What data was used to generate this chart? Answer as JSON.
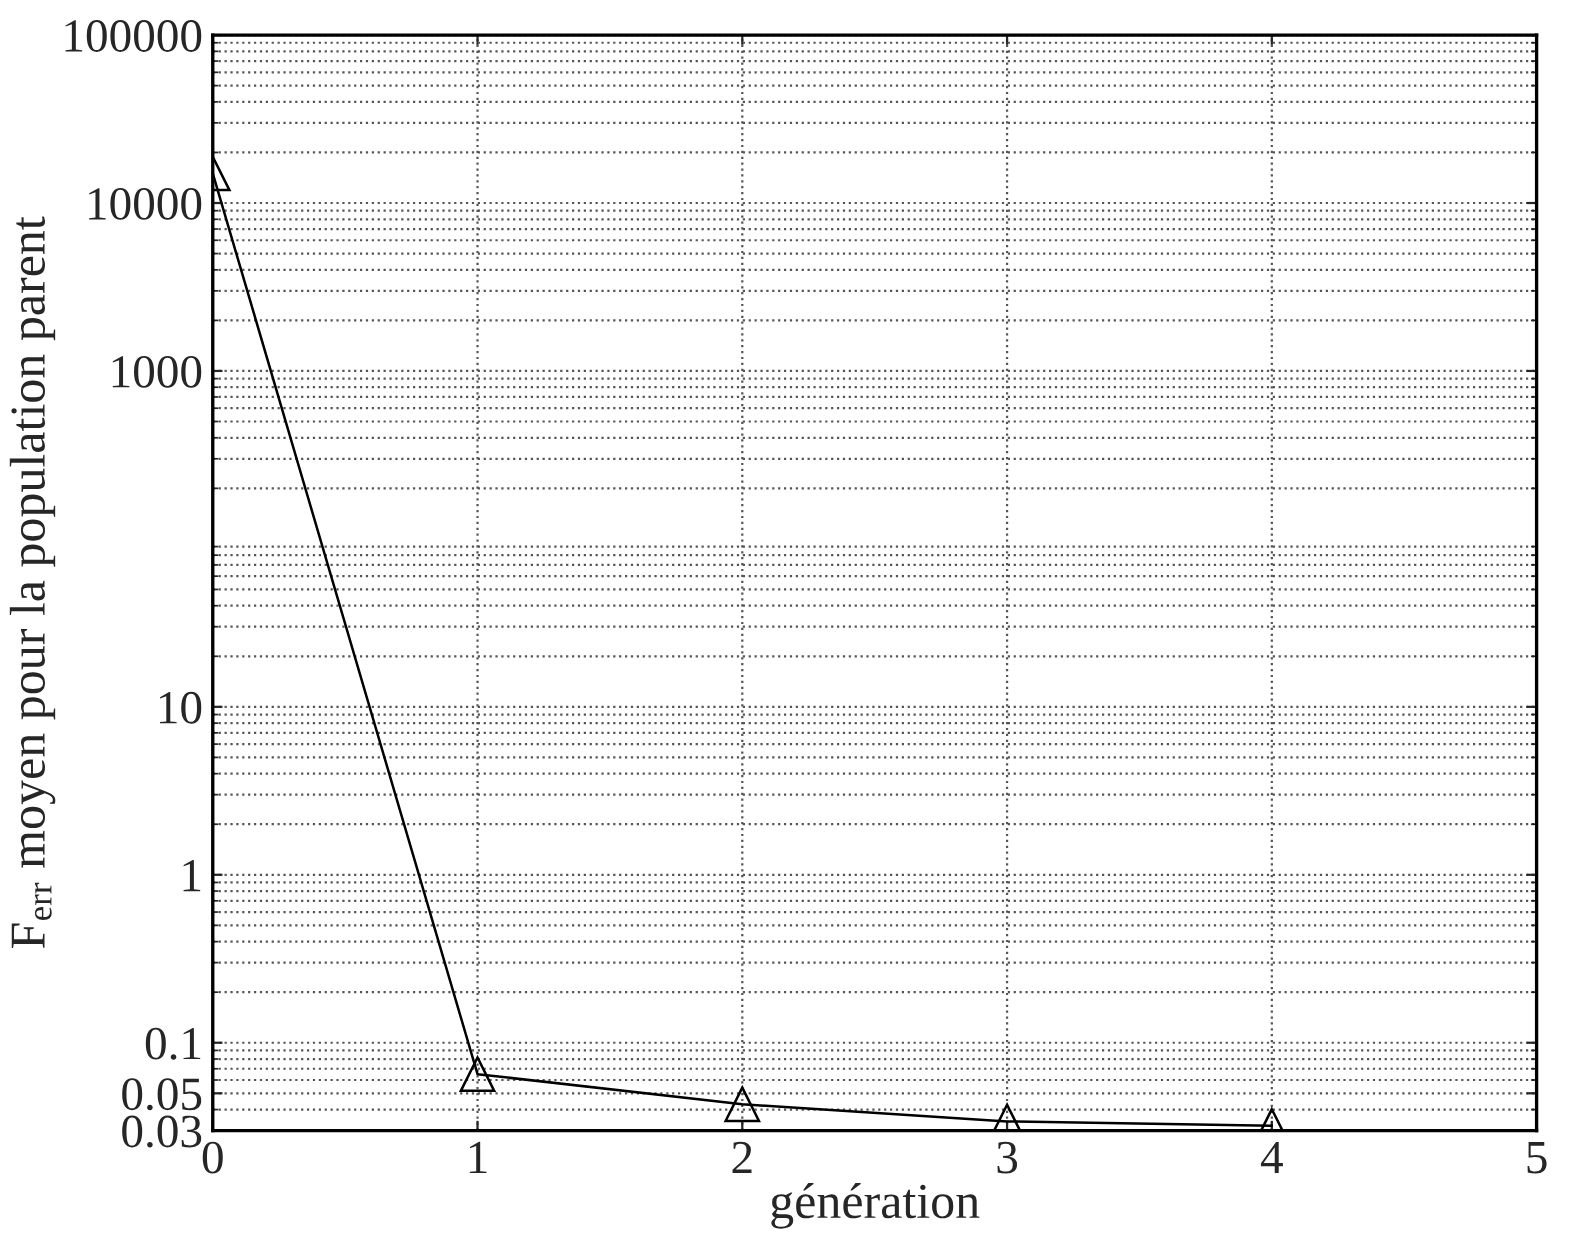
{
  "chart_data": {
    "type": "line",
    "xlabel": "génération",
    "ylabel": "F$_{err}$ moyen pour la population parent",
    "x": [
      0,
      1,
      2,
      3,
      4
    ],
    "series": [
      {
        "color": "#000000",
        "values": [
          15000,
          0.065,
          0.043,
          0.034,
          0.032
        ]
      }
    ],
    "marker": "triangle",
    "line_style": "solid",
    "log": "y",
    "grid": true,
    "xlim": [
      0,
      5
    ],
    "xticks": [
      0,
      1,
      2,
      3,
      4,
      5
    ],
    "ylim": [
      0.03,
      100000
    ],
    "yticks": [
      0.03,
      0.05,
      0.1,
      1,
      10,
      1000,
      10000,
      100000
    ]
  }
}
